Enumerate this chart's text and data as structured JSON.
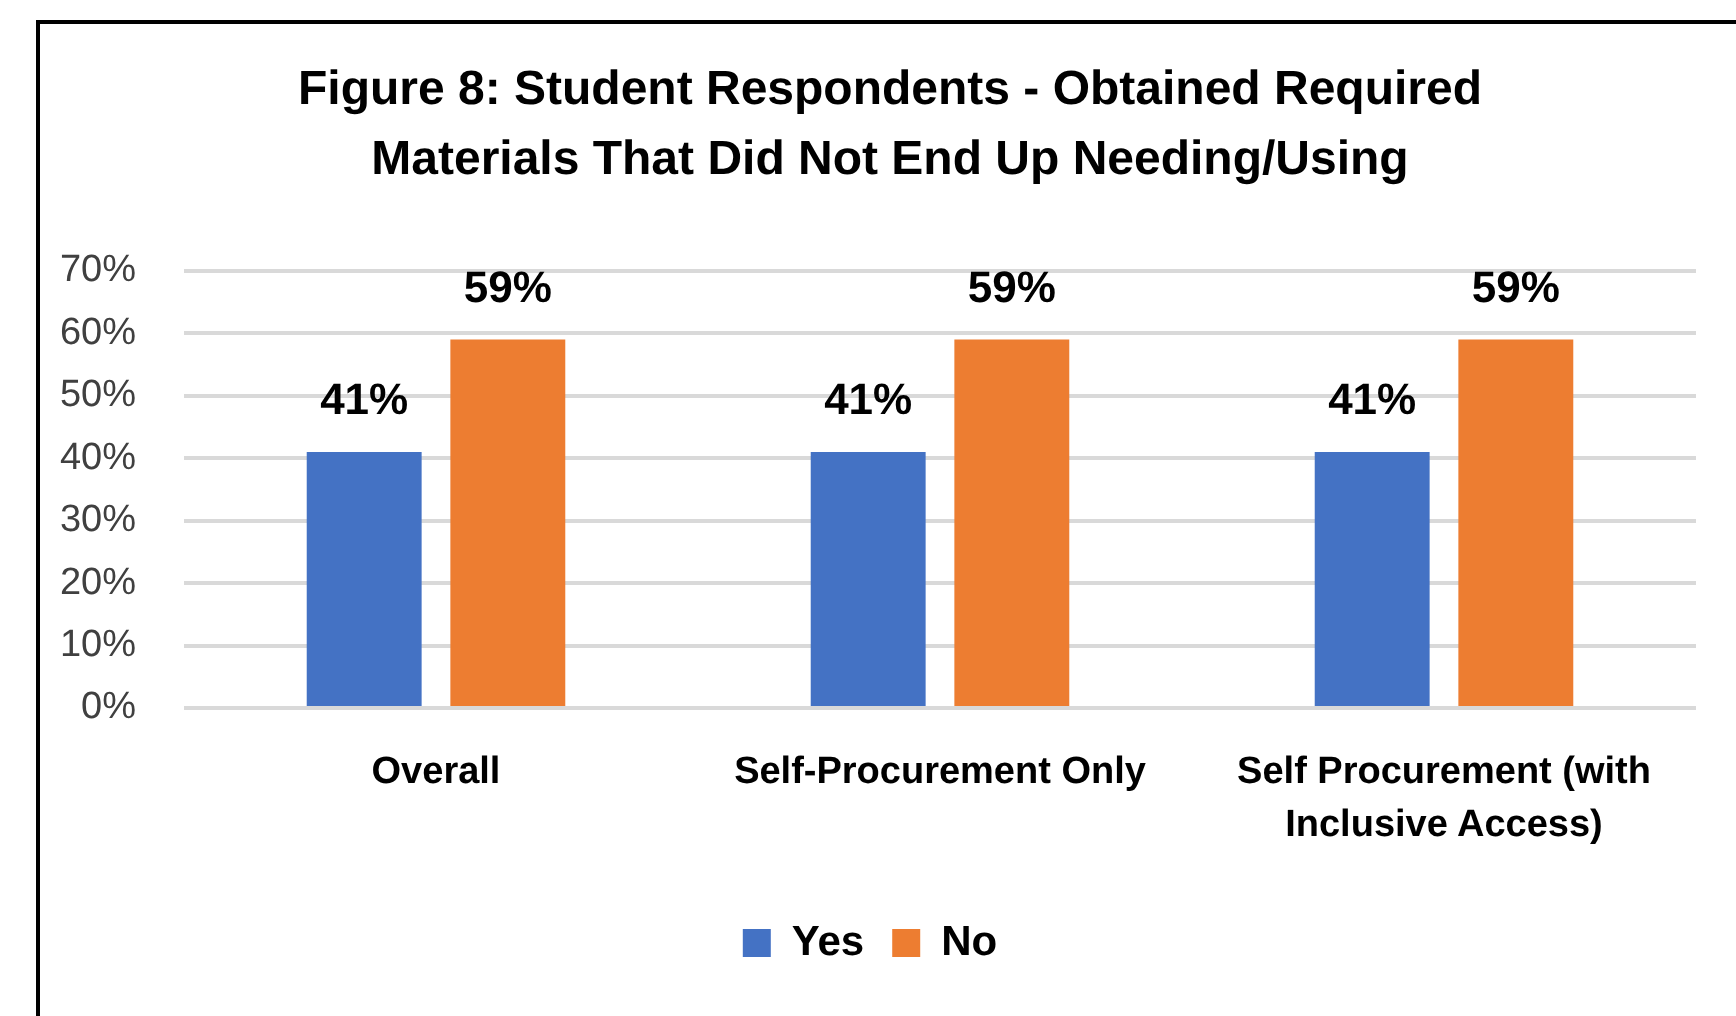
{
  "chart_data": {
    "type": "bar",
    "title": "Figure 8: Student Respondents - Obtained Required Materials That Did Not End Up Needing/Using",
    "categories": [
      "Overall",
      "Self-Procurement Only",
      "Self Procurement (with Inclusive Access)"
    ],
    "series": [
      {
        "name": "Yes",
        "color": "#4472c4",
        "values": [
          41,
          41,
          41
        ],
        "value_labels": [
          "41%",
          "41%",
          "41%"
        ]
      },
      {
        "name": "No",
        "color": "#ed7d31",
        "values": [
          59,
          59,
          59
        ],
        "value_labels": [
          "59%",
          "59%",
          "59%"
        ]
      }
    ],
    "ylim": [
      0,
      70
    ],
    "yticks": [
      {
        "value": 0,
        "label": "0%"
      },
      {
        "value": 10,
        "label": "10%"
      },
      {
        "value": 20,
        "label": "20%"
      },
      {
        "value": 30,
        "label": "30%"
      },
      {
        "value": 40,
        "label": "40%"
      },
      {
        "value": 50,
        "label": "50%"
      },
      {
        "value": 60,
        "label": "60%"
      },
      {
        "value": 70,
        "label": "70%"
      }
    ],
    "grid": "y",
    "legend": "bottom"
  }
}
